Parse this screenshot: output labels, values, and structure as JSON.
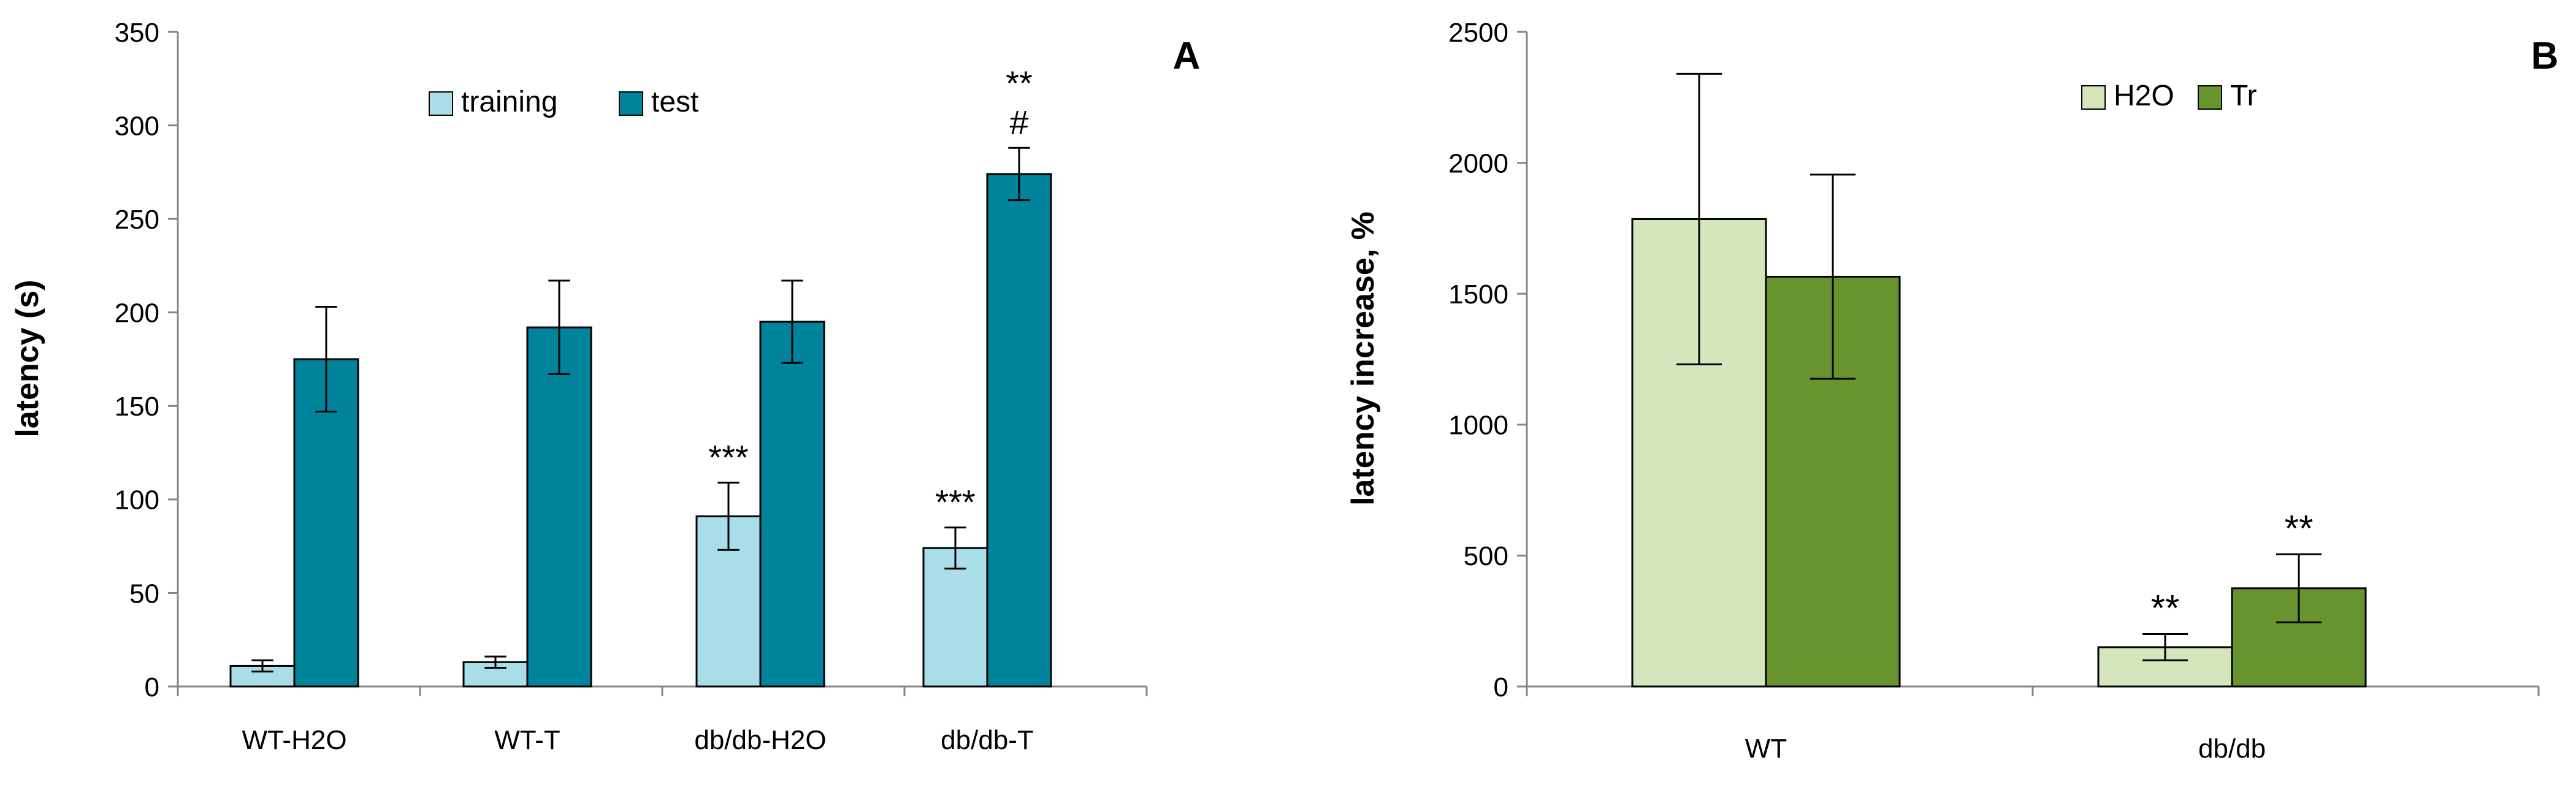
{
  "chart_data": [
    {
      "type": "bar",
      "panel_label": "A",
      "title": "",
      "xlabel": "",
      "ylabel": "latency (s)",
      "ylim": [
        0,
        350
      ],
      "yticks": [
        0,
        50,
        100,
        150,
        200,
        250,
        300,
        350
      ],
      "grid": false,
      "legend_position": "top-center",
      "categories": [
        "WT-H2O",
        "WT-T",
        "db/db-H2O",
        "db/db-T"
      ],
      "series": [
        {
          "name": "training",
          "color": "#a8dde9",
          "values": [
            11,
            13,
            91,
            74
          ],
          "errors": [
            3,
            3,
            18,
            11
          ],
          "annotations": [
            "",
            "",
            "***",
            "***"
          ]
        },
        {
          "name": "test",
          "color": "#00849c",
          "values": [
            175,
            192,
            195,
            274
          ],
          "errors": [
            28,
            25,
            22,
            14
          ],
          "annotations": [
            "",
            "",
            "",
            "**\n#"
          ]
        }
      ]
    },
    {
      "type": "bar",
      "panel_label": "B",
      "title": "",
      "xlabel": "",
      "ylabel": "latency increase, %",
      "ylim": [
        0,
        2500
      ],
      "yticks": [
        0,
        500,
        1000,
        1500,
        2000,
        2500
      ],
      "grid": false,
      "legend_position": "top-right",
      "categories": [
        "WT",
        "db/db"
      ],
      "series": [
        {
          "name": "H2O",
          "color": "#d5e6bd",
          "values": [
            1785,
            150
          ],
          "errors": [
            555,
            50
          ],
          "annotations": [
            "",
            "**"
          ]
        },
        {
          "name": "Tr",
          "color": "#67942f",
          "values": [
            1565,
            375
          ],
          "errors": [
            390,
            130
          ],
          "annotations": [
            "",
            "**"
          ]
        }
      ]
    }
  ]
}
